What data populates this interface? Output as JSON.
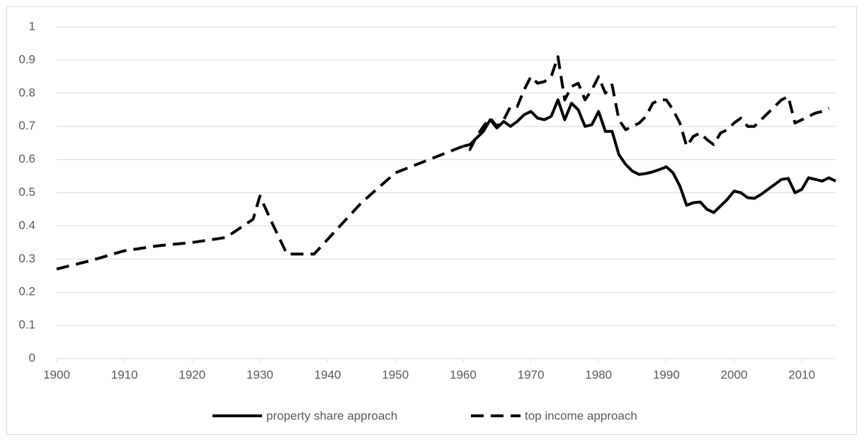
{
  "chart_data": {
    "type": "line",
    "xlim": [
      1900,
      2015
    ],
    "xticks": [
      1900,
      1910,
      1920,
      1930,
      1940,
      1950,
      1960,
      1970,
      1980,
      1990,
      2000,
      2010
    ],
    "ylim": [
      0,
      1
    ],
    "yticks": [
      0,
      0.1,
      0.2,
      0.3,
      0.4,
      0.5,
      0.6,
      0.7,
      0.8,
      0.9,
      1
    ],
    "grid": true,
    "legend": "bottom",
    "series": [
      {
        "name": "property share approach",
        "color": "#000000",
        "dash": "solid",
        "x": [
          1960,
          1961,
          1962,
          1963,
          1964,
          1965,
          1966,
          1967,
          1968,
          1969,
          1970,
          1971,
          1972,
          1973,
          1974,
          1975,
          1976,
          1977,
          1978,
          1979,
          1980,
          1981,
          1982,
          1983,
          1984,
          1985,
          1986,
          1987,
          1988,
          1989,
          1990,
          1991,
          1992,
          1993,
          1994,
          1995,
          1996,
          1997,
          1998,
          1999,
          2000,
          2001,
          2002,
          2003,
          2004,
          2005,
          2006,
          2007,
          2008,
          2009,
          2010,
          2011,
          2012,
          2013,
          2014,
          2015
        ],
        "values": [
          0.64,
          0.645,
          0.665,
          0.685,
          0.72,
          0.695,
          0.715,
          0.7,
          0.715,
          0.735,
          0.745,
          0.725,
          0.72,
          0.73,
          0.78,
          0.72,
          0.77,
          0.75,
          0.7,
          0.705,
          0.745,
          0.685,
          0.685,
          0.615,
          0.585,
          0.565,
          0.555,
          0.558,
          0.563,
          0.57,
          0.578,
          0.56,
          0.52,
          0.462,
          0.47,
          0.472,
          0.45,
          0.44,
          0.46,
          0.48,
          0.505,
          0.5,
          0.485,
          0.483,
          0.495,
          0.51,
          0.525,
          0.54,
          0.543,
          0.5,
          0.51,
          0.545,
          0.54,
          0.535,
          0.545,
          0.535
        ]
      },
      {
        "name": "top income approach",
        "color": "#000000",
        "dash": "dashed",
        "x": [
          1900,
          1905,
          1910,
          1915,
          1920,
          1925,
          1929,
          1930,
          1932,
          1934,
          1938,
          1945,
          1950,
          1955,
          1960,
          1961,
          1962,
          1963,
          1964,
          1965,
          1966,
          1967,
          1968,
          1969,
          1970,
          1971,
          1972,
          1973,
          1974,
          1975,
          1976,
          1977,
          1978,
          1979,
          1980,
          1981,
          1982,
          1983,
          1984,
          1985,
          1986,
          1987,
          1988,
          1989,
          1990,
          1991,
          1992,
          1993,
          1994,
          1995,
          1996,
          1997,
          1998,
          1999,
          2000,
          2001,
          2002,
          2003,
          2004,
          2005,
          2006,
          2007,
          2008,
          2009,
          2010,
          2011,
          2012,
          2013,
          2014
        ],
        "values": [
          0.27,
          0.295,
          0.325,
          0.34,
          0.35,
          0.365,
          0.42,
          0.49,
          0.4,
          0.315,
          0.315,
          0.47,
          0.56,
          0.6,
          0.64,
          0.63,
          0.67,
          0.7,
          0.725,
          0.7,
          0.72,
          0.76,
          0.76,
          0.81,
          0.85,
          0.83,
          0.835,
          0.85,
          0.91,
          0.78,
          0.82,
          0.83,
          0.78,
          0.81,
          0.85,
          0.8,
          0.825,
          0.72,
          0.69,
          0.7,
          0.71,
          0.73,
          0.77,
          0.78,
          0.78,
          0.75,
          0.71,
          0.64,
          0.67,
          0.68,
          0.66,
          0.645,
          0.68,
          0.69,
          0.71,
          0.725,
          0.7,
          0.7,
          0.72,
          0.74,
          0.76,
          0.78,
          0.79,
          0.71,
          0.72,
          0.73,
          0.74,
          0.745,
          0.755
        ]
      }
    ]
  }
}
